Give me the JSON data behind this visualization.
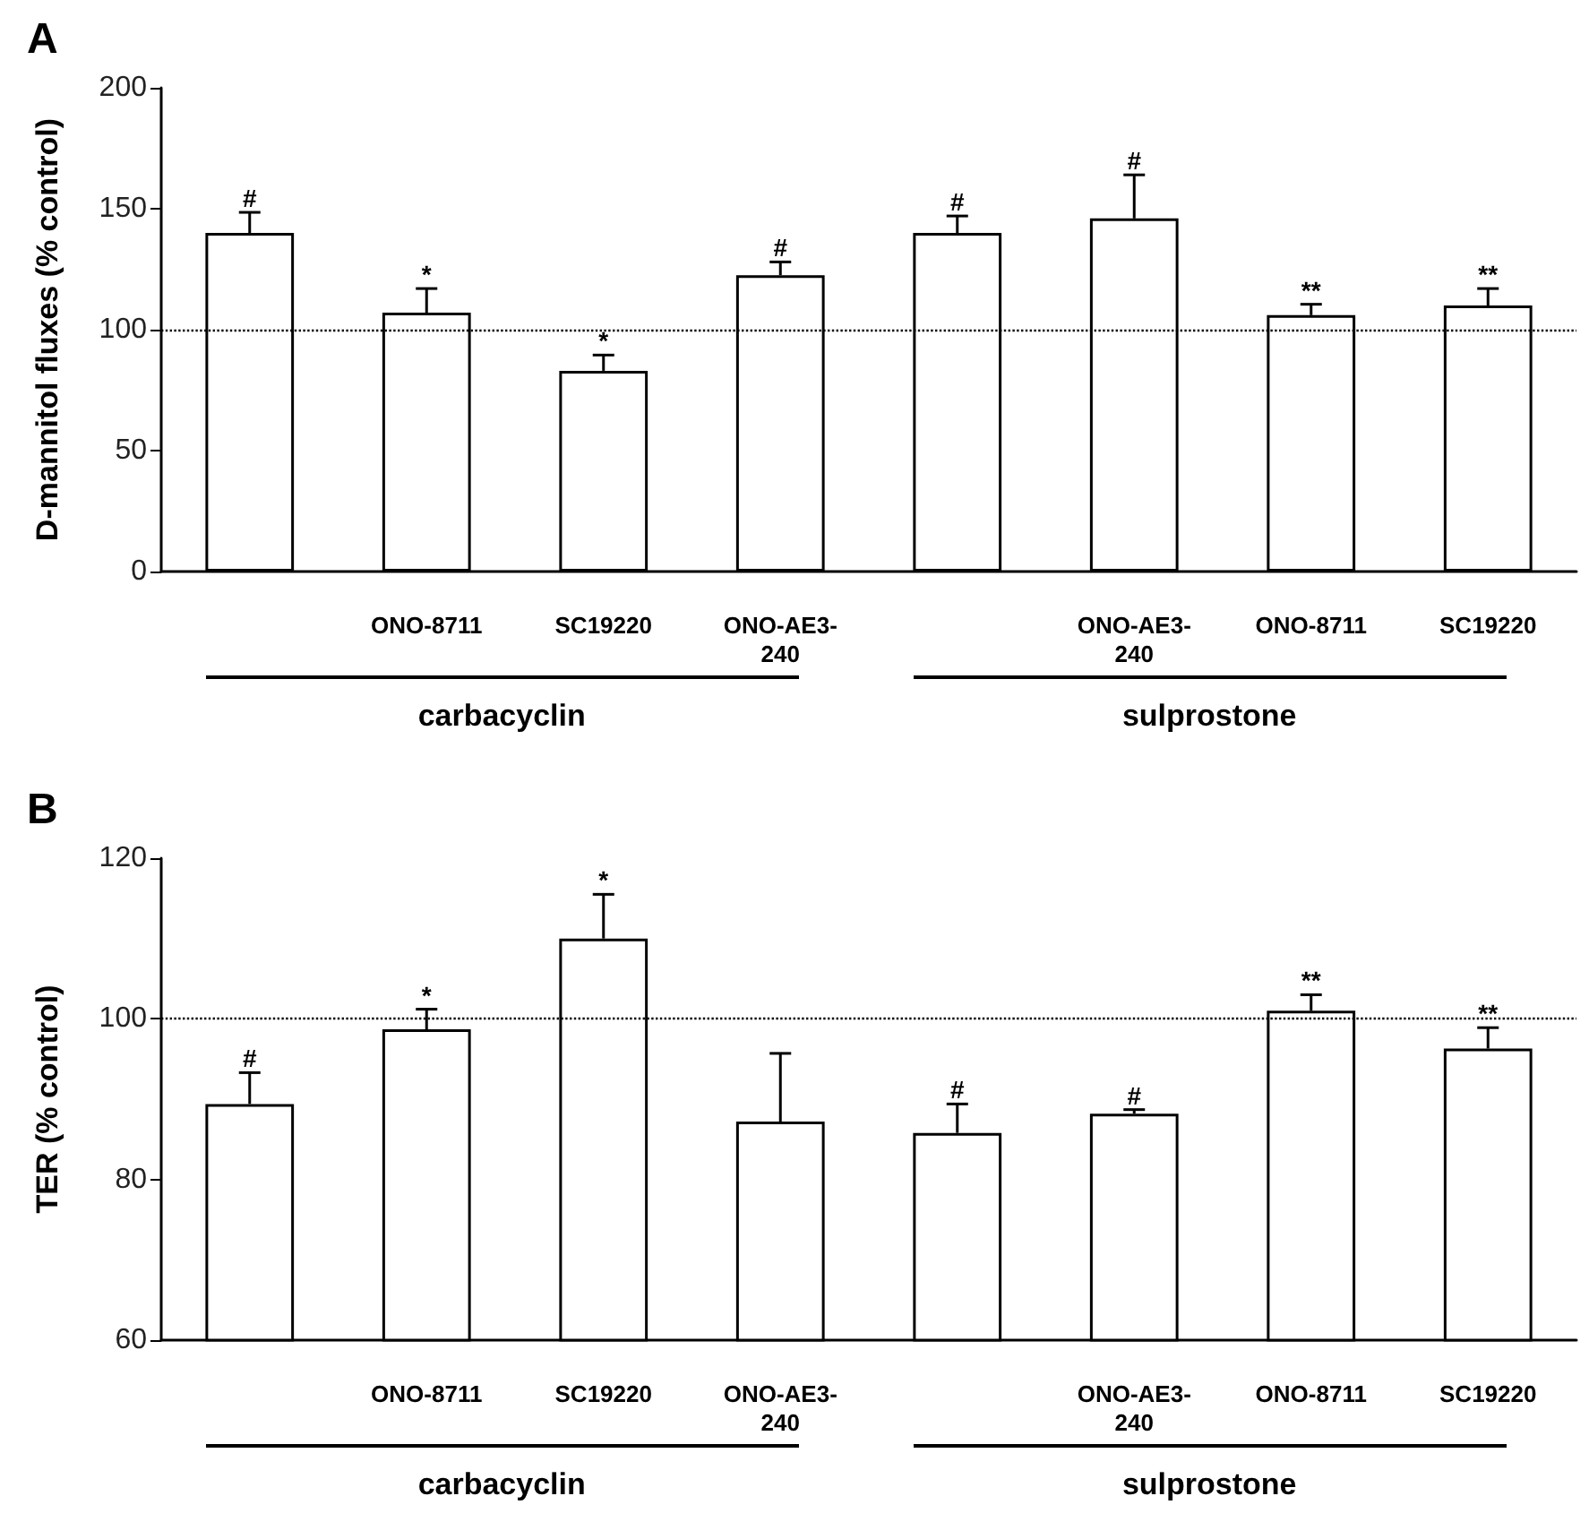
{
  "chart_data": [
    {
      "type": "bar",
      "title": "A",
      "ylabel": "D-mannitol fluxes (% control)",
      "categories": [
        null,
        "ONO-8711",
        "SC19220",
        "ONO-AE3-240",
        null,
        "ONO-AE3-240",
        "ONO-8711",
        "SC19220"
      ],
      "color": "#ffffff",
      "values": [
        140,
        107,
        83,
        122.5,
        140,
        146,
        106,
        110
      ],
      "errors": [
        [
          140,
          148.5
        ],
        [
          107,
          117
        ],
        [
          83,
          89.5
        ],
        [
          122.5,
          128
        ],
        [
          140,
          147
        ],
        [
          146,
          164
        ],
        [
          106,
          110.5
        ],
        [
          110,
          117
        ]
      ],
      "value_labels": [
        "#",
        "*",
        "*",
        "#",
        "#",
        "#",
        "**",
        "**"
      ],
      "ylim": [
        0,
        200
      ],
      "yticks": [
        0,
        50,
        100,
        150,
        200
      ],
      "ref_lines": [
        {
          "axis": "y",
          "value": 100,
          "line_style": "dotted"
        }
      ],
      "annotations": [
        "carbacyclin",
        "sulprostone"
      ]
    },
    {
      "type": "bar",
      "title": "B",
      "ylabel": "TER (% control)",
      "categories": [
        null,
        "ONO-8711",
        "SC19220",
        "ONO-AE3-240",
        null,
        "ONO-AE3-240",
        "ONO-8711",
        "SC19220"
      ],
      "color": "#ffffff",
      "values": [
        89.4,
        98.7,
        110,
        87.2,
        85.8,
        88.2,
        101,
        96.3
      ],
      "errors": [
        [
          89.4,
          93.3
        ],
        [
          98.7,
          101.2
        ],
        [
          110,
          115.5
        ],
        [
          87.2,
          95.7
        ],
        [
          85.8,
          89.4
        ],
        [
          88.2,
          88.7
        ],
        [
          101,
          103
        ],
        [
          96.3,
          98.9
        ]
      ],
      "value_labels": [
        "#",
        "*",
        "*",
        null,
        "#",
        "#",
        "**",
        "**"
      ],
      "ylim": [
        60,
        120
      ],
      "yticks": [
        60,
        80,
        100,
        120
      ],
      "ref_lines": [
        {
          "axis": "y",
          "value": 100,
          "line_style": "dotted"
        }
      ],
      "annotations": [
        "carbacyclin",
        "sulprostone"
      ]
    }
  ]
}
